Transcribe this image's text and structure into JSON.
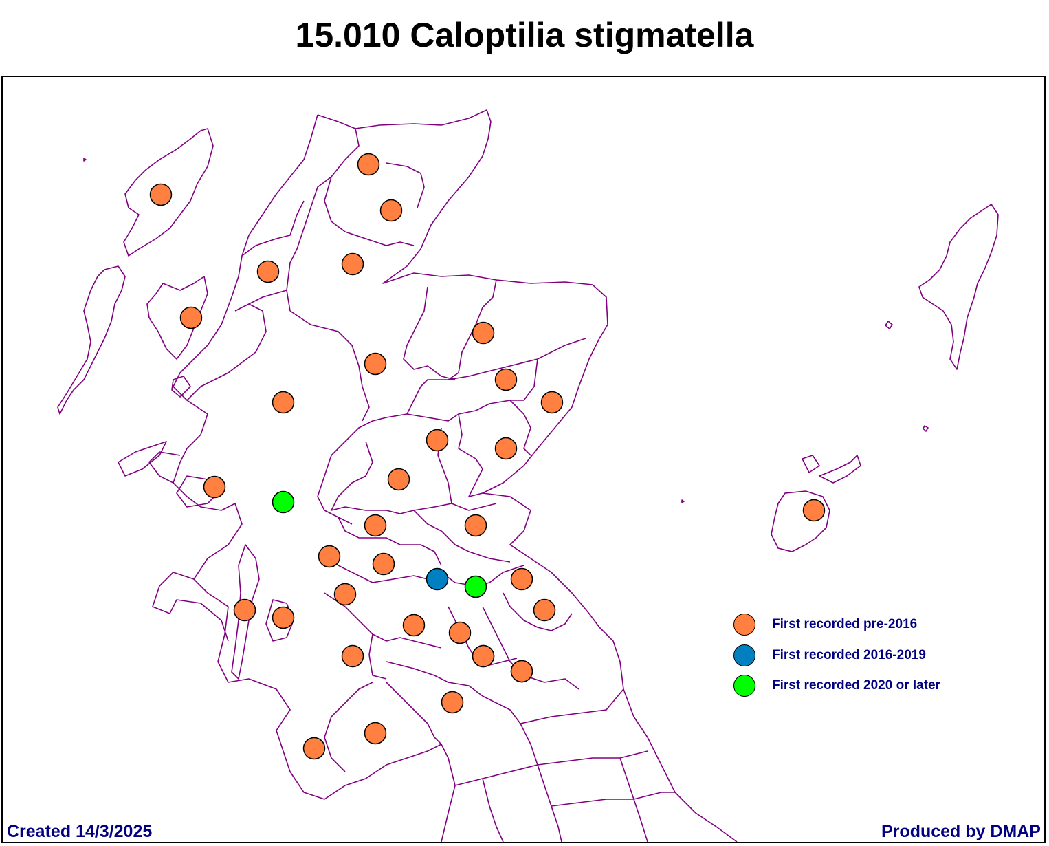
{
  "title": "15.010 Caloptilia stigmatella",
  "footer": {
    "created": "Created 14/3/2025",
    "producer": "Produced by DMAP"
  },
  "colors": {
    "boundary": "#800080",
    "pre2016": "#FF8040",
    "y2016_2019": "#0080C0",
    "y2020_later": "#00FF00",
    "legend_text": "#000080"
  },
  "legend": [
    {
      "key": "pre2016",
      "label": "First recorded pre-2016"
    },
    {
      "key": "y2016_2019",
      "label": "First recorded 2016-2019"
    },
    {
      "key": "y2020_later",
      "label": "First recorded 2020 or later"
    }
  ],
  "records": [
    {
      "category": "pre2016"
    },
    {
      "category": "pre2016"
    },
    {
      "category": "pre2016"
    },
    {
      "category": "pre2016"
    },
    {
      "category": "pre2016"
    },
    {
      "category": "pre2016"
    },
    {
      "category": "pre2016"
    },
    {
      "category": "pre2016"
    },
    {
      "category": "pre2016"
    },
    {
      "category": "pre2016"
    },
    {
      "category": "pre2016"
    },
    {
      "category": "pre2016"
    },
    {
      "category": "pre2016"
    },
    {
      "category": "pre2016"
    },
    {
      "category": "pre2016"
    },
    {
      "category": "pre2016"
    },
    {
      "category": "y2020_later"
    },
    {
      "category": "pre2016"
    },
    {
      "category": "pre2016"
    },
    {
      "category": "pre2016"
    },
    {
      "category": "pre2016"
    },
    {
      "category": "pre2016"
    },
    {
      "category": "y2016_2019"
    },
    {
      "category": "y2020_later"
    },
    {
      "category": "pre2016"
    },
    {
      "category": "pre2016"
    },
    {
      "category": "pre2016"
    },
    {
      "category": "pre2016"
    },
    {
      "category": "pre2016"
    },
    {
      "category": "pre2016"
    },
    {
      "category": "pre2016"
    },
    {
      "category": "pre2016"
    },
    {
      "category": "pre2016"
    },
    {
      "category": "pre2016"
    },
    {
      "category": "pre2016"
    },
    {
      "category": "pre2016"
    },
    {
      "category": "pre2016"
    },
    {
      "category": "pre2016"
    }
  ]
}
